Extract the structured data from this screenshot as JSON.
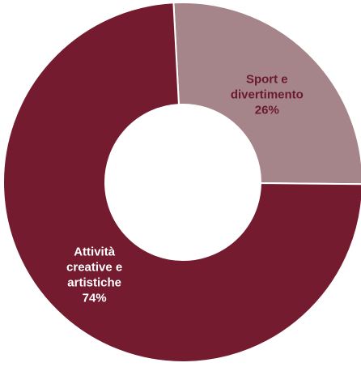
{
  "chart_data": {
    "type": "pie",
    "variant": "donut",
    "title": "",
    "series": [
      {
        "name": "",
        "slices": [
          {
            "label": "Sport e divertimento",
            "label_lines": [
              "Sport e",
              "divertimento"
            ],
            "value": 26,
            "value_text": "26%",
            "color": "#a5858a",
            "label_color": "#6b1a2e"
          },
          {
            "label": "Attività creative e artistiche",
            "label_lines": [
              "Attività",
              "creative e",
              "artistiche"
            ],
            "value": 74,
            "value_text": "74%",
            "color": "#741b30",
            "label_color": "#ffffff"
          }
        ]
      }
    ],
    "legend": "none",
    "slice_border_color": "#ffffff"
  }
}
